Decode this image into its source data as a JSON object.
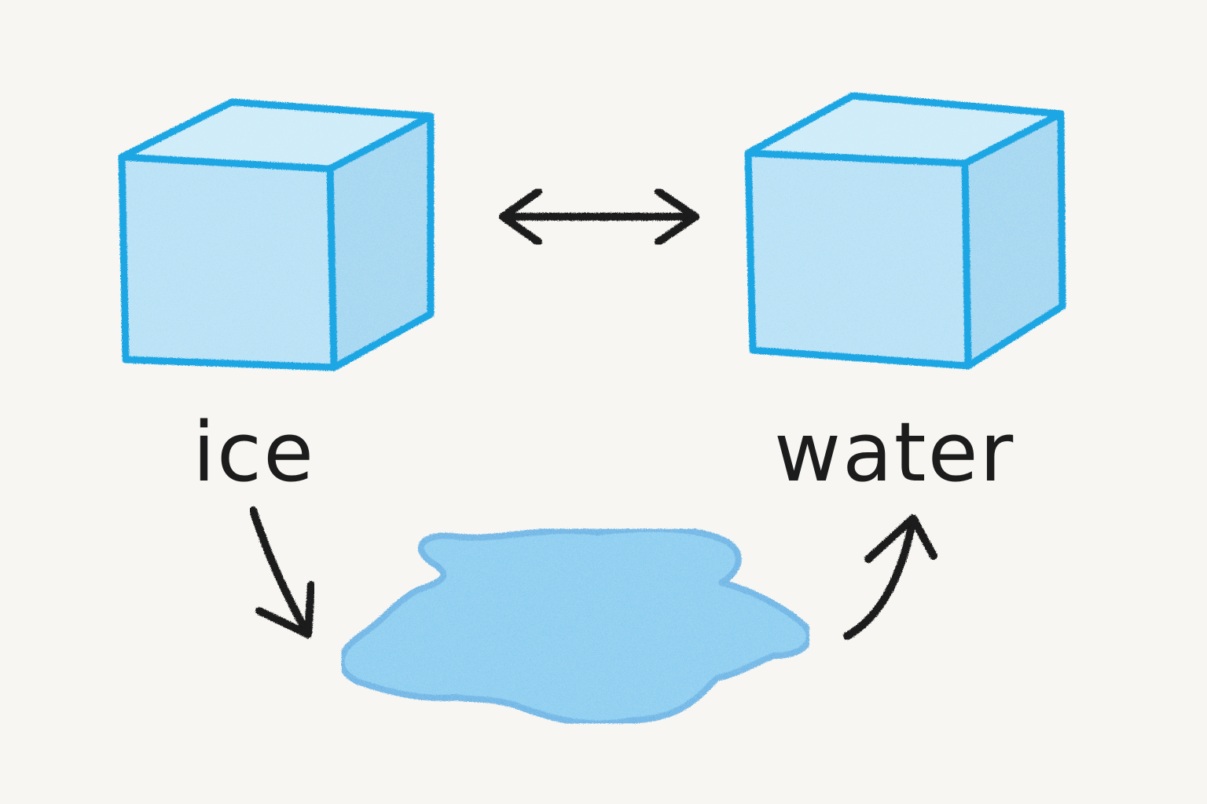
{
  "labels": {
    "left": "ice",
    "right": "water"
  },
  "colors": {
    "background": "#f7f6f2",
    "cube_outline": "#1ea6e3",
    "cube_front": "#a9dcf4",
    "cube_top": "#c4e8f8",
    "cube_side": "#8fd0ef",
    "puddle_fill": "#6cc5ee",
    "puddle_outline": "#2aa7e2",
    "arrow": "#1a1a1a"
  },
  "icons": {
    "left_cube": "ice-cube-icon",
    "right_cube": "ice-cube-icon",
    "puddle": "water-puddle-icon",
    "double_arrow": "double-headed-arrow-icon",
    "melt_arrow": "curved-arrow-down-icon",
    "freeze_arrow": "curved-arrow-up-icon"
  }
}
